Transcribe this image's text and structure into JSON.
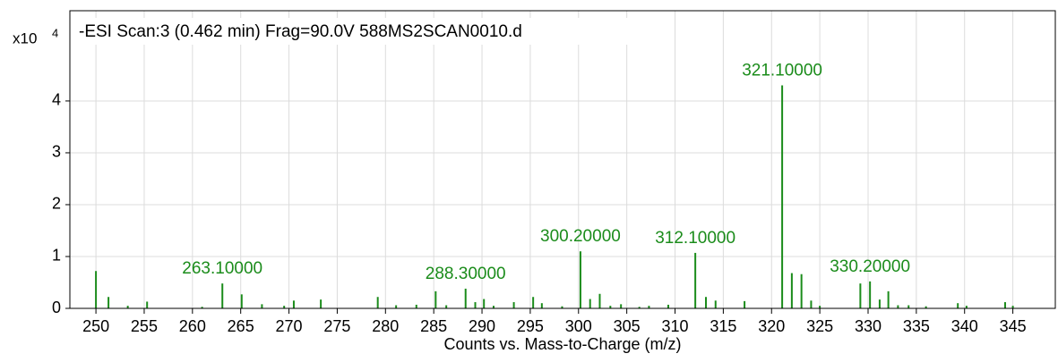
{
  "chart_data": {
    "type": "bar",
    "title": "-ESI Scan:3 (0.462 min) Frag=90.0V 588MS2SCAN0010.d",
    "y_multiplier": {
      "base": "x10",
      "exponent": "4"
    },
    "xlabel": "Counts vs. Mass-to-Charge (m/z)",
    "color": "#1b8c1b",
    "grid": true,
    "xlim": [
      247.3,
      349.4
    ],
    "ylim": [
      0,
      5.74
    ],
    "xticks": [
      250,
      255,
      260,
      265,
      270,
      275,
      280,
      285,
      290,
      295,
      300,
      305,
      310,
      315,
      320,
      325,
      330,
      335,
      340,
      345
    ],
    "yticks": [
      0,
      1,
      2,
      3,
      4
    ],
    "x": [
      250,
      251.3,
      253.3,
      255.3,
      261,
      263.1,
      265.1,
      267.2,
      269.5,
      270.5,
      273.3,
      279.2,
      281.1,
      283.2,
      285.2,
      286.3,
      288.3,
      289.3,
      290.2,
      291.2,
      293.3,
      295.3,
      296.2,
      298.3,
      300.2,
      301.2,
      302.2,
      303.3,
      304.4,
      306.3,
      307.3,
      309.3,
      312.1,
      313.2,
      314.2,
      317.2,
      321.1,
      322.1,
      323.1,
      324.1,
      325,
      329.2,
      330.2,
      331.2,
      332.1,
      333.1,
      334.2,
      336,
      339.3,
      340.2,
      344.2,
      345
    ],
    "values": [
      0.72,
      0.22,
      0.05,
      0.13,
      0.03,
      0.48,
      0.27,
      0.08,
      0.05,
      0.15,
      0.17,
      0.22,
      0.06,
      0.07,
      0.33,
      0.06,
      0.38,
      0.12,
      0.18,
      0.05,
      0.12,
      0.22,
      0.1,
      0.04,
      1.1,
      0.18,
      0.28,
      0.05,
      0.08,
      0.03,
      0.05,
      0.07,
      1.07,
      0.22,
      0.15,
      0.14,
      4.3,
      0.68,
      0.66,
      0.15,
      0.05,
      0.48,
      0.52,
      0.17,
      0.33,
      0.06,
      0.06,
      0.04,
      0.1,
      0.05,
      0.12,
      0.05
    ],
    "annotations": [
      {
        "x": 263.1,
        "label": "263.10000"
      },
      {
        "x": 288.3,
        "label": "288.30000"
      },
      {
        "x": 300.2,
        "label": "300.20000"
      },
      {
        "x": 312.1,
        "label": "312.10000"
      },
      {
        "x": 321.1,
        "label": "321.10000"
      },
      {
        "x": 330.2,
        "label": "330.20000"
      }
    ]
  }
}
